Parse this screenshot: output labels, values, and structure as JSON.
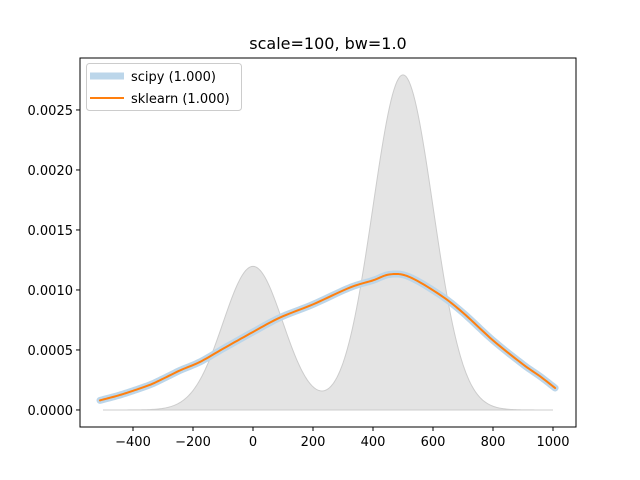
{
  "chart_data": {
    "type": "line",
    "title": "scale=100, bw=1.0",
    "xlabel": "",
    "ylabel": "",
    "xlim": [
      -576.7,
      1076.7
    ],
    "ylim": [
      -0.000142,
      0.002933
    ],
    "grid": false,
    "legend_position": "upper left",
    "x_ticks": [
      -400,
      -200,
      0,
      200,
      400,
      600,
      800,
      1000
    ],
    "x_tick_labels": [
      "−400",
      "−200",
      "0",
      "200",
      "400",
      "600",
      "800",
      "1000"
    ],
    "y_ticks": [
      0.0,
      0.0005,
      0.001,
      0.0015,
      0.002,
      0.0025
    ],
    "y_tick_labels": [
      "0.0000",
      "0.0005",
      "0.0010",
      "0.0015",
      "0.0020",
      "0.0025"
    ],
    "background_fill": {
      "name": "true density",
      "description": "0.3*N(0,100) + 0.7*N(500,100)",
      "components": [
        {
          "weight": 0.3,
          "mean": 0,
          "std": 100
        },
        {
          "weight": 0.7,
          "mean": 500,
          "std": 100
        }
      ],
      "x_range": [
        -500,
        1000
      ],
      "fill_color": "#e4e4e4",
      "edge_color": "#cccccc"
    },
    "series": [
      {
        "name": "scipy (1.000)",
        "color": "#bcd6ea",
        "linewidth": 7,
        "x": [
          -510,
          -450,
          -400,
          -343,
          -300,
          -243,
          -177,
          -100,
          0,
          90,
          200,
          323,
          400,
          457,
          520,
          623,
          700,
          800,
          900,
          957,
          1007
        ],
        "y": [
          8e-05,
          0.00012,
          0.00016,
          0.00021,
          0.00026,
          0.00033,
          0.0004,
          0.00051,
          0.00065,
          0.00077,
          0.00088,
          0.00102,
          0.00108,
          0.00113,
          0.00111,
          0.00096,
          0.00081,
          0.00058,
          0.00038,
          0.00028,
          0.000183
        ]
      },
      {
        "name": "sklearn (1.000)",
        "color": "#ff7f0e",
        "linewidth": 2,
        "x": [
          -510,
          -450,
          -400,
          -343,
          -300,
          -243,
          -177,
          -100,
          0,
          90,
          200,
          323,
          400,
          457,
          520,
          623,
          700,
          800,
          900,
          957,
          1007
        ],
        "y": [
          8e-05,
          0.00012,
          0.00016,
          0.00021,
          0.00026,
          0.00033,
          0.0004,
          0.00051,
          0.00065,
          0.00077,
          0.00088,
          0.00102,
          0.00108,
          0.00113,
          0.00111,
          0.00096,
          0.00081,
          0.00058,
          0.00038,
          0.00028,
          0.000183
        ]
      }
    ],
    "legend": [
      {
        "label": "scipy (1.000)",
        "color": "#bcd6ea",
        "style": "thick"
      },
      {
        "label": "sklearn (1.000)",
        "color": "#ff7f0e",
        "style": "thin"
      }
    ]
  }
}
